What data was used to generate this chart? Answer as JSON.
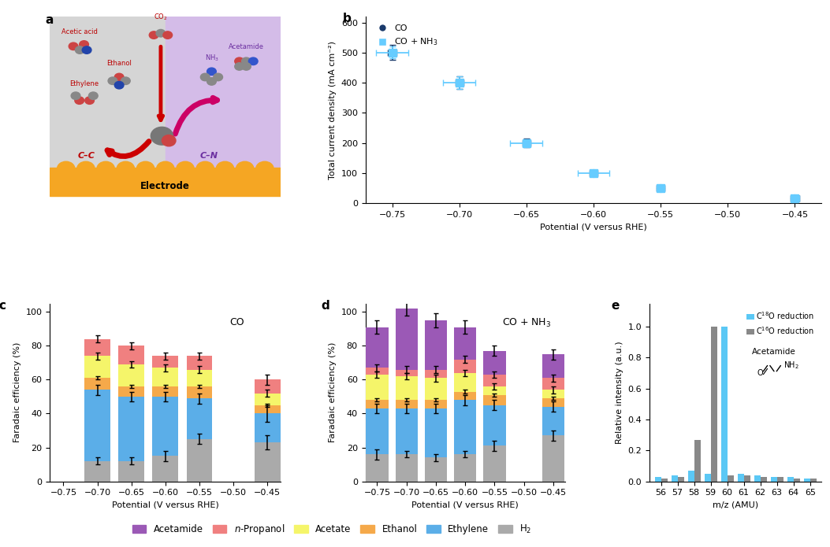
{
  "panel_b": {
    "CO_x": [
      -0.45,
      -0.55,
      -0.6,
      -0.65,
      -0.7,
      -0.75
    ],
    "CO_y": [
      15,
      50,
      100,
      200,
      400,
      500
    ],
    "CO_yerr": [
      4,
      6,
      10,
      15,
      20,
      25
    ],
    "CO_xerr": [
      0.003,
      0.003,
      0.003,
      0.003,
      0.003,
      0.003
    ],
    "NH3_x": [
      -0.45,
      -0.55,
      -0.6,
      -0.65,
      -0.7,
      -0.75
    ],
    "NH3_y": [
      15,
      50,
      100,
      200,
      400,
      500
    ],
    "NH3_xerr": [
      0.003,
      0.003,
      0.012,
      0.012,
      0.012,
      0.012
    ],
    "NH3_yerr": [
      4,
      6,
      10,
      12,
      20,
      20
    ],
    "xlabel": "Potential (V versus RHE)",
    "ylabel": "Total current density (mA cm⁻²)"
  },
  "panel_c": {
    "potentials": [
      -0.45,
      -0.55,
      -0.6,
      -0.65,
      -0.7
    ],
    "H2": [
      23,
      25,
      15,
      12,
      12
    ],
    "H2_err": [
      4,
      3,
      3,
      2,
      2
    ],
    "Ethylene": [
      17,
      24,
      35,
      38,
      42
    ],
    "Ethylene_err": [
      5,
      3,
      3,
      3,
      3
    ],
    "Ethanol": [
      5,
      7,
      6,
      6,
      7
    ],
    "Ethanol_err": [
      1,
      1,
      1,
      1,
      1
    ],
    "Acetate": [
      7,
      10,
      11,
      13,
      13
    ],
    "Acetate_err": [
      2,
      2,
      2,
      2,
      2
    ],
    "nPropanol": [
      8,
      8,
      7,
      11,
      10
    ],
    "nPropanol_err": [
      3,
      2,
      2,
      2,
      2
    ],
    "xlabel": "Potential (V versus RHE)",
    "ylabel": "Faradaic efficiency (%)",
    "label": "CO"
  },
  "panel_d": {
    "potentials": [
      -0.45,
      -0.55,
      -0.6,
      -0.65,
      -0.7,
      -0.75
    ],
    "H2": [
      27,
      21,
      16,
      14,
      16,
      16
    ],
    "H2_err": [
      3,
      3,
      2,
      2,
      2,
      3
    ],
    "Ethylene": [
      17,
      24,
      32,
      29,
      27,
      27
    ],
    "Ethylene_err": [
      3,
      3,
      3,
      3,
      3,
      3
    ],
    "Ethanol": [
      5,
      6,
      5,
      5,
      5,
      5
    ],
    "Ethanol_err": [
      1,
      1,
      1,
      1,
      1,
      1
    ],
    "Acetate": [
      5,
      5,
      11,
      13,
      14,
      15
    ],
    "Acetate_err": [
      2,
      2,
      2,
      2,
      2,
      2
    ],
    "nPropanol": [
      7,
      7,
      8,
      5,
      4,
      4
    ],
    "nPropanol_err": [
      2,
      2,
      2,
      2,
      2,
      2
    ],
    "Acetamide": [
      14,
      14,
      19,
      29,
      36,
      24
    ],
    "Acetamide_err": [
      3,
      3,
      4,
      4,
      4,
      4
    ],
    "xlabel": "Potential (V versus RHE)",
    "ylabel": "Faradaic efficiency (%)",
    "label": "CO + NH₃"
  },
  "panel_e": {
    "mz": [
      56,
      57,
      58,
      59,
      60,
      61,
      62,
      63,
      64,
      65
    ],
    "C18O": [
      0.03,
      0.04,
      0.07,
      0.05,
      1.0,
      0.05,
      0.04,
      0.03,
      0.03,
      0.02
    ],
    "C16O": [
      0.02,
      0.03,
      0.27,
      1.0,
      0.04,
      0.04,
      0.03,
      0.03,
      0.02,
      0.02
    ],
    "xlabel": "m/z (AMU)",
    "ylabel": "Relative intensity (a.u.)"
  },
  "colors": {
    "Acetamide": "#9b59b6",
    "nPropanol": "#f08080",
    "Acetate": "#f5f56a",
    "Ethanol": "#f5a94a",
    "Ethylene": "#5baee8",
    "H2": "#aaaaaa",
    "CO_dot": "#1a3a6b",
    "NH3_sq": "#66ccff",
    "C18O": "#5bc8f5",
    "C16O": "#888888"
  }
}
